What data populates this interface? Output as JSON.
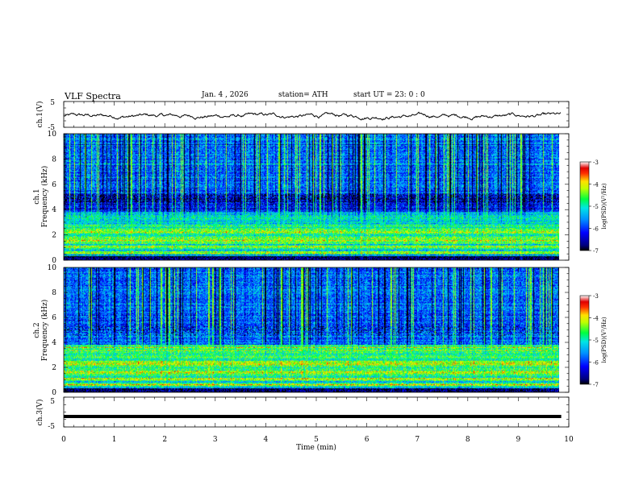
{
  "header": {
    "title": "VLF  Spectra",
    "date": "Jan.  4  , 2026",
    "station": "station= ATH",
    "start_ut": "start  UT  =    23: 0  : 0"
  },
  "chart_data": [
    {
      "type": "line",
      "panel": "ch1-waveform",
      "ylabel": "ch.1(V)",
      "ylim": [
        -5,
        5
      ],
      "y_ticks": [
        "5",
        "-5"
      ],
      "xlim": [
        0,
        10
      ],
      "series": [
        {
          "values_summary": "noisy trace centered near -0.5 V, amplitude about 1 V",
          "x_end": 9.85
        }
      ]
    },
    {
      "type": "heatmap",
      "panel": "ch1-spectrogram",
      "ylabel_line1": "ch.1",
      "ylabel_line2": "Frequency  (kHz)",
      "ylim": [
        0,
        10
      ],
      "y_ticks": [
        "0",
        "2",
        "4",
        "6",
        "8",
        "10"
      ],
      "xlim": [
        0,
        10
      ],
      "x_end": 9.85,
      "colorbar": {
        "label": "log(PSD)(V²/Hz)",
        "range": [
          -7,
          -3
        ],
        "ticks": [
          "-3",
          "-4",
          "-5",
          "-6",
          "-7"
        ]
      }
    },
    {
      "type": "heatmap",
      "panel": "ch2-spectrogram",
      "ylabel_line1": "ch.2",
      "ylabel_line2": "Frequency  (kHz)",
      "ylim": [
        0,
        10
      ],
      "y_ticks": [
        "0",
        "2",
        "4",
        "6",
        "8",
        "10"
      ],
      "xlim": [
        0,
        10
      ],
      "x_end": 9.85,
      "colorbar": {
        "label": "log(PSD)(V²/Hz)",
        "range": [
          -7,
          -3
        ],
        "ticks": [
          "-3",
          "-4",
          "-5",
          "-6",
          "-7"
        ]
      }
    },
    {
      "type": "line",
      "panel": "ch3-waveform",
      "ylabel": "ch.3(V)",
      "ylim": [
        -5,
        5
      ],
      "y_ticks": [
        "5",
        "-5"
      ],
      "xlim": [
        0,
        10
      ],
      "series": [
        {
          "values_summary": "thick flat trace near -1.5 V",
          "x_end": 9.85
        }
      ]
    }
  ],
  "x_axis": {
    "label": "Time  (min)",
    "ticks": [
      "0",
      "1",
      "2",
      "3",
      "4",
      "5",
      "6",
      "7",
      "8",
      "9",
      "10"
    ]
  }
}
